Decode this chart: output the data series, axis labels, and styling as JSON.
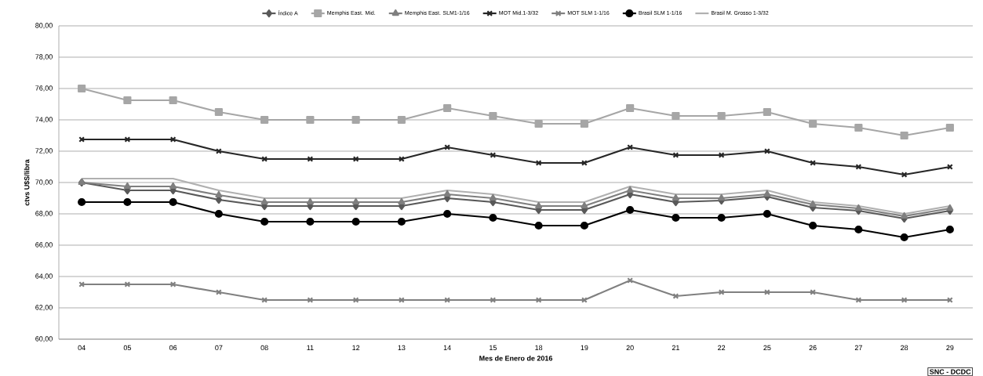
{
  "chart_data": {
    "type": "line",
    "xlabel": "Mes de Enero de 2016",
    "ylabel": "ctvs U$S/libra",
    "categories": [
      "04",
      "05",
      "06",
      "07",
      "08",
      "11",
      "12",
      "13",
      "14",
      "15",
      "18",
      "19",
      "20",
      "21",
      "22",
      "25",
      "26",
      "27",
      "28",
      "29"
    ],
    "series": [
      {
        "name": "Índice A",
        "color": "#595959",
        "marker": "diamond",
        "values": [
          70,
          69.5,
          69.5,
          68.9,
          68.5,
          68.5,
          68.5,
          68.5,
          69,
          68.75,
          68.25,
          68.25,
          69.25,
          68.75,
          68.85,
          69.1,
          68.4,
          68.2,
          67.7,
          68.2
        ]
      },
      {
        "name": "Memphis East. Mid.",
        "color": "#a6a6a6",
        "marker": "square",
        "values": [
          76,
          75.25,
          75.25,
          74.5,
          74,
          74,
          74,
          74,
          74.75,
          74.25,
          73.75,
          73.75,
          74.75,
          74.25,
          74.25,
          74.5,
          73.75,
          73.5,
          73,
          73.5
        ]
      },
      {
        "name": "Memphis East. SLM1-1/16",
        "color": "#7f7f7f",
        "marker": "triangle",
        "values": [
          70,
          69.75,
          69.75,
          69.2,
          68.75,
          68.75,
          68.75,
          68.75,
          69.25,
          69,
          68.5,
          68.5,
          69.5,
          69,
          69,
          69.25,
          68.6,
          68.35,
          67.85,
          68.35
        ]
      },
      {
        "name": "MOT  Mid.1-3/32",
        "color": "#262626",
        "marker": "cross",
        "values": [
          72.75,
          72.75,
          72.75,
          72,
          71.5,
          71.5,
          71.5,
          71.5,
          72.25,
          71.75,
          71.25,
          71.25,
          72.25,
          71.75,
          71.75,
          72,
          71.25,
          71,
          70.5,
          71
        ]
      },
      {
        "name": "MOT SLM 1-1/16",
        "color": "#808080",
        "marker": "cross",
        "values": [
          63.5,
          63.5,
          63.5,
          63,
          62.5,
          62.5,
          62.5,
          62.5,
          62.5,
          62.5,
          62.5,
          62.5,
          63.75,
          62.75,
          63,
          63,
          63,
          62.5,
          62.5,
          62.5
        ]
      },
      {
        "name": "Brasil SLM 1-1/16",
        "color": "#000000",
        "marker": "circle",
        "values": [
          68.75,
          68.75,
          68.75,
          68,
          67.5,
          67.5,
          67.5,
          67.5,
          68,
          67.75,
          67.25,
          67.25,
          68.25,
          67.75,
          67.75,
          68,
          67.25,
          67,
          66.5,
          67
        ]
      },
      {
        "name": "Brasil M. Grosso  1-3/32",
        "color": "#b0b0b0",
        "marker": "none",
        "values": [
          70.25,
          70.25,
          70.25,
          69.5,
          69,
          69,
          69,
          69,
          69.5,
          69.25,
          68.75,
          68.75,
          69.75,
          69.25,
          69.25,
          69.5,
          68.75,
          68.5,
          68,
          68.5
        ]
      }
    ],
    "ylim": [
      60,
      80
    ],
    "yticks": [
      {
        "value": 60,
        "label": "60,00"
      },
      {
        "value": 62,
        "label": "62,00"
      },
      {
        "value": 64,
        "label": "64,00"
      },
      {
        "value": 66,
        "label": "66,00"
      },
      {
        "value": 68,
        "label": "68,00"
      },
      {
        "value": 70,
        "label": "70,00"
      },
      {
        "value": 72,
        "label": "72,00"
      },
      {
        "value": 74,
        "label": "74,00"
      },
      {
        "value": 76,
        "label": "76,00"
      },
      {
        "value": 78,
        "label": "78,00"
      },
      {
        "value": 80,
        "label": "80,00"
      }
    ],
    "grid": "y",
    "legend": "top",
    "line_style": "solid",
    "annotations": [
      "SNC - DCDC"
    ]
  }
}
